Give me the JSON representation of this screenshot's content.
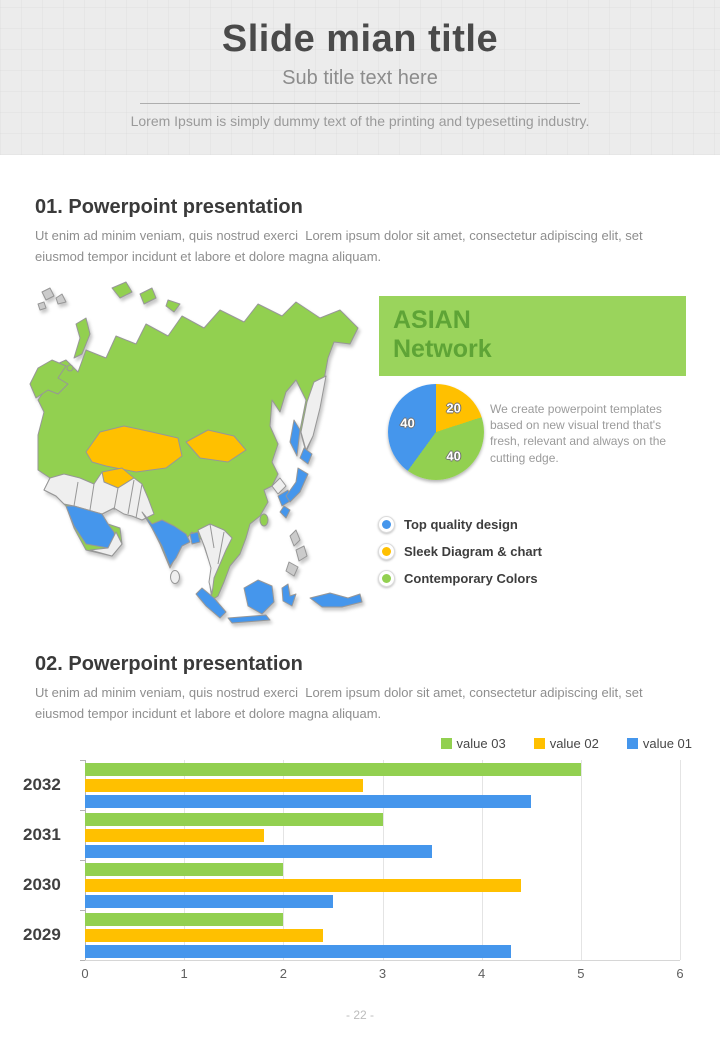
{
  "slide": {
    "title": "Slide mian title",
    "subtitle": "Sub title text here",
    "intro": "Lorem Ipsum is simply dummy text of the printing and typesetting industry.",
    "footer": "- 22 -"
  },
  "colors": {
    "green": "#92D050",
    "yellow": "#FFC000",
    "blue": "#4596EC",
    "panel_bg": "#9AD45C",
    "panel_fg": "#5EA436",
    "neutral_land": "#EFEFEF",
    "gray_land": "#CBCBCB"
  },
  "section1": {
    "heading": "01. Powerpoint presentation",
    "body": "Ut enim ad minim veniam, quis nostrud exerci  Lorem ipsum dolor sit amet, consectetur adipiscing elit, set eiusmod tempor incidunt et labore et dolore magna aliquam."
  },
  "section2": {
    "heading": "02. Powerpoint presentation",
    "body": "Ut enim ad minim veniam, quis nostrud exerci  Lorem ipsum dolor sit amet, consectetur adipiscing elit, set eiusmod tempor incidunt et labore et dolore magna aliquam."
  },
  "asian_panel": {
    "title_line1": "ASIAN",
    "title_line2": "Network",
    "description": "We create powerpoint templates based on new visual trend that's fresh, relevant and always on the cutting edge.",
    "features": [
      {
        "label": "Top quality design",
        "color": "#4596EC"
      },
      {
        "label": "Sleek Diagram & chart",
        "color": "#FFC000"
      },
      {
        "label": "Contemporary Colors",
        "color": "#92D050"
      }
    ]
  },
  "chart_data": [
    {
      "type": "pie",
      "values": [
        20,
        40,
        40
      ],
      "labels": [
        "20",
        "40",
        "40"
      ],
      "colors": [
        "#FFC000",
        "#92D050",
        "#4596EC"
      ],
      "start_angle_deg": 0,
      "direction": "clockwise-from-top",
      "annotation": "We create powerpoint templates based on new visual trend that's fresh, relevant and always on the cutting edge."
    },
    {
      "type": "bar",
      "orientation": "horizontal",
      "categories": [
        "2032",
        "2031",
        "2030",
        "2029"
      ],
      "series": [
        {
          "name": "value 03",
          "color": "#92D050",
          "values": [
            5.0,
            3.0,
            2.0,
            2.0
          ]
        },
        {
          "name": "value 02",
          "color": "#FFC000",
          "values": [
            2.8,
            1.8,
            4.4,
            2.4
          ]
        },
        {
          "name": "value 01",
          "color": "#4596EC",
          "values": [
            4.5,
            3.5,
            2.5,
            4.3
          ]
        }
      ],
      "xlim": [
        0,
        6
      ],
      "xticks": [
        0,
        1,
        2,
        3,
        4,
        5,
        6
      ],
      "grid": true,
      "legend_position": "top-right"
    }
  ]
}
